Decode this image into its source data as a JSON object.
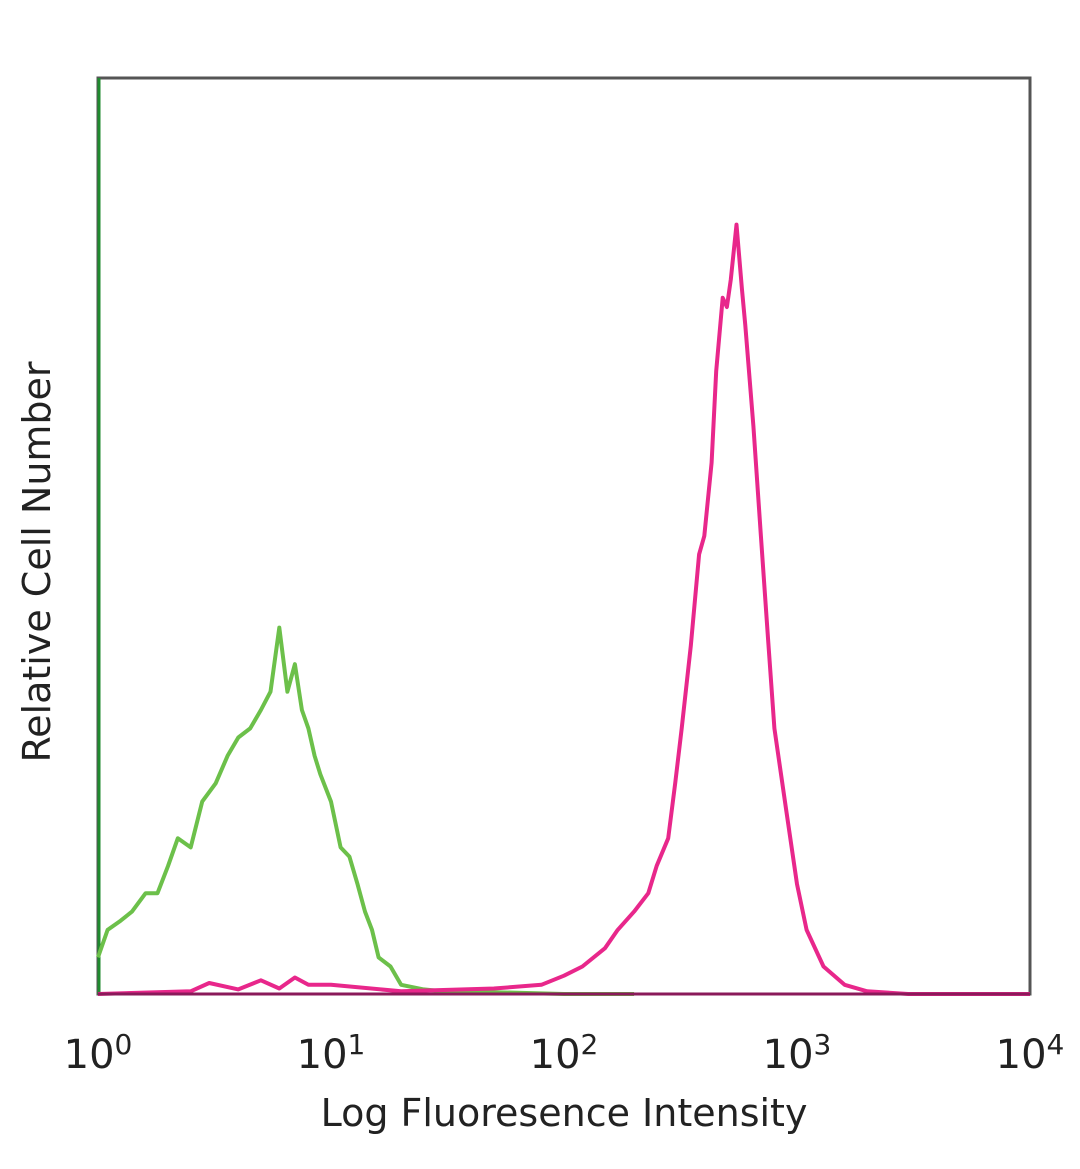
{
  "chart_data": {
    "type": "line",
    "title": "",
    "xlabel": "Log Fluoresence Intensity",
    "ylabel": "Relative Cell Number",
    "xscale": "log",
    "xlim": [
      1,
      10000
    ],
    "ylim": [
      0,
      100
    ],
    "grid": false,
    "legend": "none",
    "x_ticks": [
      {
        "base": "10",
        "exp": "0"
      },
      {
        "base": "10",
        "exp": "1"
      },
      {
        "base": "10",
        "exp": "2"
      },
      {
        "base": "10",
        "exp": "3"
      },
      {
        "base": "10",
        "exp": "4"
      }
    ],
    "series": [
      {
        "color": "#6cc04a",
        "x": [
          1,
          1.1,
          1.25,
          1.4,
          1.6,
          1.8,
          2.0,
          2.2,
          2.5,
          2.8,
          3.2,
          3.6,
          4.0,
          4.5,
          5.0,
          5.5,
          6.0,
          6.5,
          7.0,
          7.5,
          8.0,
          8.5,
          9.0,
          10,
          11,
          12,
          13,
          14,
          15,
          16,
          18,
          20,
          25,
          30,
          50,
          100,
          200
        ],
        "y": [
          4,
          7,
          8,
          9,
          11,
          11,
          14,
          17,
          16,
          21,
          23,
          26,
          28,
          29,
          31,
          33,
          40,
          33,
          36,
          31,
          29,
          26,
          24,
          21,
          16,
          15,
          12,
          9,
          7,
          4,
          3,
          1,
          0.5,
          0.3,
          0.2,
          0,
          0
        ]
      },
      {
        "color": "#e8278b",
        "x": [
          1,
          2.5,
          3,
          4,
          5,
          6,
          7,
          8,
          10,
          20,
          50,
          80,
          100,
          120,
          150,
          170,
          200,
          230,
          250,
          280,
          300,
          320,
          350,
          380,
          400,
          430,
          450,
          480,
          500,
          520,
          550,
          580,
          600,
          650,
          700,
          750,
          800,
          900,
          1000,
          1100,
          1300,
          1600,
          2000,
          3000,
          10000
        ],
        "y": [
          0,
          0.3,
          1.2,
          0.5,
          1.5,
          0.6,
          1.8,
          1.0,
          1.0,
          0.3,
          0.6,
          1.0,
          2.0,
          3.0,
          5.0,
          7.0,
          9.0,
          11.0,
          14.0,
          17.0,
          23.0,
          29.0,
          38.0,
          48.0,
          50.0,
          58.0,
          68.0,
          76.0,
          75.0,
          78.0,
          84.0,
          77.0,
          73.0,
          62.0,
          50.0,
          39.0,
          29.0,
          20.0,
          12.0,
          7.0,
          3.0,
          1.0,
          0.3,
          0,
          0
        ]
      }
    ]
  }
}
